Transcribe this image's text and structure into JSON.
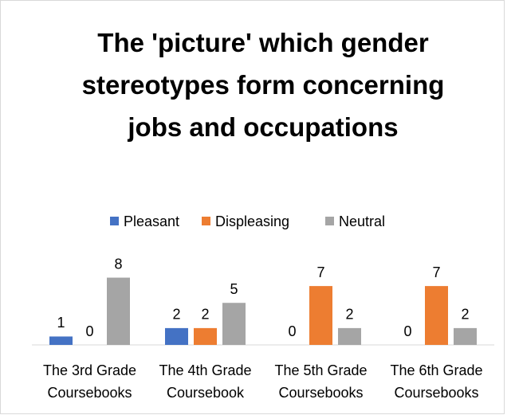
{
  "chart_data": {
    "type": "bar",
    "title": "The 'picture' which gender stereotypes  form concerning jobs and occupations",
    "categories": [
      "The 3rd Grade Coursebooks",
      "The 4th Grade Coursebook",
      "The 5th Grade Coursebooks",
      "The 6th Grade Coursebooks"
    ],
    "series": [
      {
        "name": "Pleasant",
        "color": "#4472c4",
        "values": [
          1,
          2,
          0,
          0
        ]
      },
      {
        "name": "Displeasing",
        "color": "#ed7d31",
        "values": [
          0,
          2,
          7,
          7
        ]
      },
      {
        "name": "Neutral",
        "color": "#a5a5a5",
        "values": [
          8,
          5,
          2,
          2
        ]
      }
    ],
    "ylim": [
      0,
      9
    ],
    "legend": "top"
  }
}
